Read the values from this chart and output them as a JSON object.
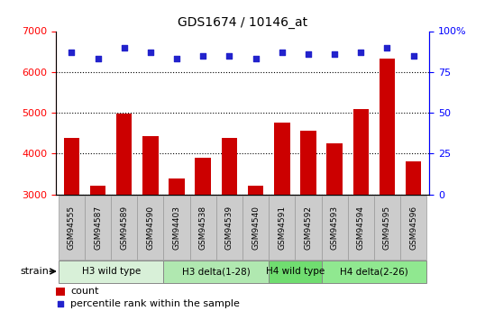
{
  "title": "GDS1674 / 10146_at",
  "categories": [
    "GSM94555",
    "GSM94587",
    "GSM94589",
    "GSM94590",
    "GSM94403",
    "GSM94538",
    "GSM94539",
    "GSM94540",
    "GSM94591",
    "GSM94592",
    "GSM94593",
    "GSM94594",
    "GSM94595",
    "GSM94596"
  ],
  "counts": [
    4380,
    3220,
    4980,
    4420,
    3380,
    3900,
    4380,
    3220,
    4760,
    4560,
    4250,
    5100,
    6320,
    3800
  ],
  "percentiles": [
    87,
    83,
    90,
    87,
    83,
    85,
    85,
    83,
    87,
    86,
    86,
    87,
    90,
    85
  ],
  "bar_color": "#cc0000",
  "dot_color": "#2222cc",
  "ylim_left": [
    3000,
    7000
  ],
  "ylim_right": [
    0,
    100
  ],
  "yticks_left": [
    3000,
    4000,
    5000,
    6000,
    7000
  ],
  "yticks_right": [
    0,
    25,
    50,
    75,
    100
  ],
  "yticklabels_right": [
    "0",
    "25",
    "50",
    "75",
    "100%"
  ],
  "groups": [
    {
      "label": "H3 wild type",
      "start": 0,
      "end": 4,
      "color": "#d8f0d8"
    },
    {
      "label": "H3 delta(1-28)",
      "start": 4,
      "end": 8,
      "color": "#b0e8b0"
    },
    {
      "label": "H4 wild type",
      "start": 8,
      "end": 10,
      "color": "#70dd70"
    },
    {
      "label": "H4 delta(2-26)",
      "start": 10,
      "end": 14,
      "color": "#90e890"
    }
  ],
  "tick_box_color": "#cccccc",
  "legend_count_color": "#cc0000",
  "legend_pct_color": "#2222cc",
  "strain_label": "strain",
  "legend_count": "count",
  "legend_pct": "percentile rank within the sample"
}
